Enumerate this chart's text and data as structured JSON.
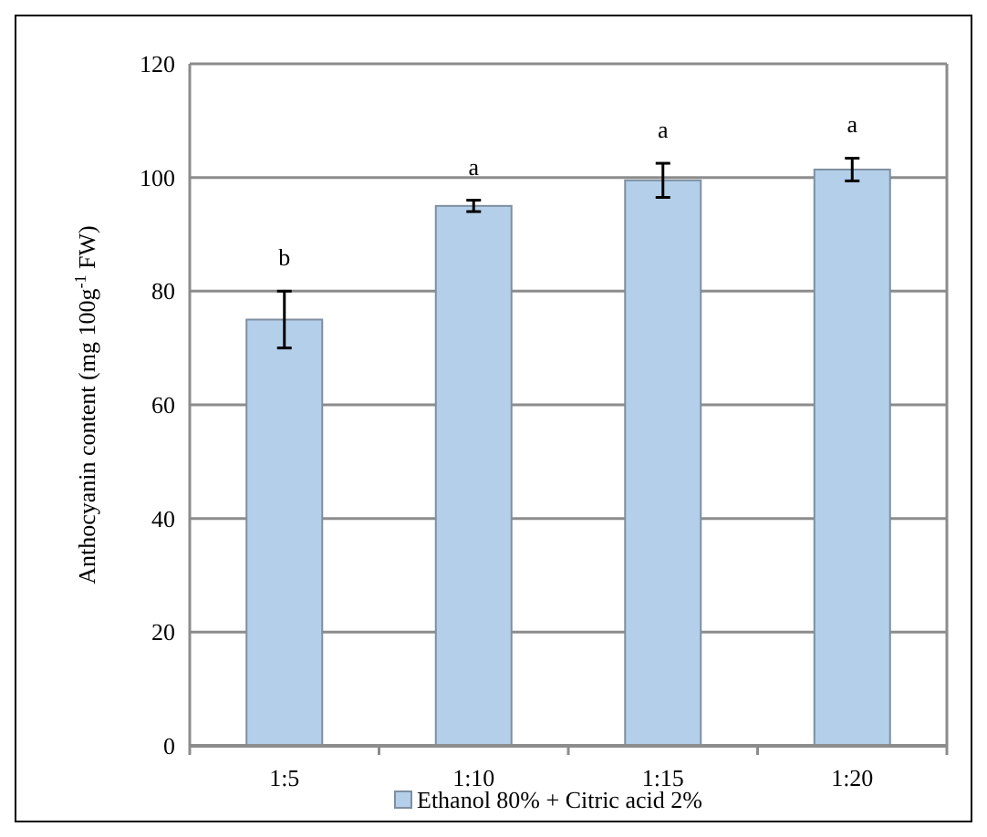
{
  "chart_data": {
    "type": "bar",
    "ylabel": "Anthocyanin content (mg 100g$^{-1}$ FW)",
    "categories": [
      "1:5",
      "1:10",
      "1:15",
      "1:20"
    ],
    "series": [
      {
        "name": "Ethanol 80% + Citric acid 2%",
        "color": "#b4cfea",
        "values": [
          75,
          95,
          99.5,
          101.4
        ],
        "errors": [
          5,
          1,
          3,
          2
        ]
      }
    ],
    "ylim": [
      0,
      120
    ],
    "yticks": [
      0,
      20,
      40,
      60,
      80,
      100,
      120
    ],
    "grid": "y",
    "legend": "bottom",
    "annotations": [
      "b",
      "a",
      "a",
      "a"
    ]
  }
}
